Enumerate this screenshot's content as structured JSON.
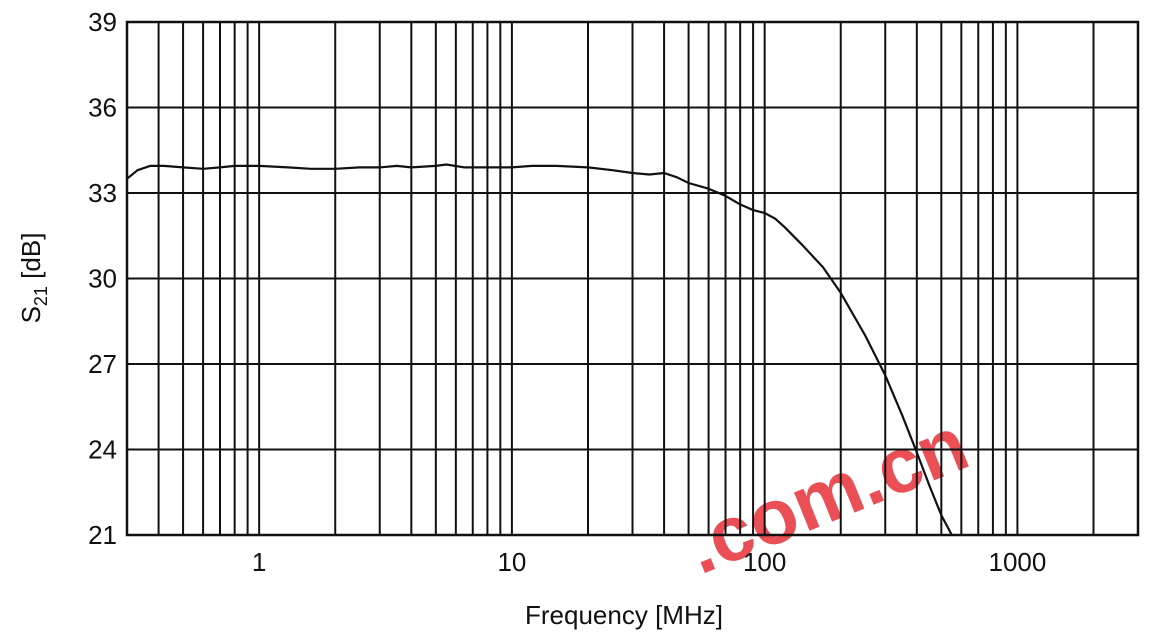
{
  "chart_data": {
    "type": "line",
    "xlabel": "Frequency [MHz]",
    "ylabel_main": "S",
    "ylabel_sub": "21",
    "ylabel_unit": " [dB]",
    "xscale": "log",
    "xlim": [
      0.3,
      3000
    ],
    "ylim": [
      21,
      39
    ],
    "x_ticks": [
      1,
      10,
      100,
      1000
    ],
    "x_tick_labels": [
      "1",
      "10",
      "100",
      "1000"
    ],
    "y_ticks": [
      21,
      24,
      27,
      30,
      33,
      36,
      39
    ],
    "y_tick_labels": [
      "21",
      "24",
      "27",
      "30",
      "33",
      "36",
      "39"
    ],
    "grid": true,
    "series": [
      {
        "x": [
          0.3,
          0.33,
          0.37,
          0.42,
          0.5,
          0.6,
          0.7,
          0.8,
          1.0,
          1.3,
          1.6,
          2.0,
          2.5,
          3.0,
          3.5,
          4.0,
          5.0,
          5.5,
          6.5,
          8.0,
          10,
          12,
          15,
          20,
          25,
          30,
          35,
          40,
          45,
          50,
          60,
          70,
          80,
          90,
          100,
          110,
          120,
          140,
          170,
          200,
          250,
          300,
          350,
          400,
          450,
          500,
          550
        ],
        "y": [
          33.5,
          33.8,
          33.95,
          33.95,
          33.9,
          33.85,
          33.9,
          33.95,
          33.95,
          33.9,
          33.85,
          33.85,
          33.9,
          33.9,
          33.95,
          33.9,
          33.95,
          34.0,
          33.9,
          33.9,
          33.9,
          33.95,
          33.95,
          33.9,
          33.8,
          33.7,
          33.65,
          33.7,
          33.55,
          33.35,
          33.15,
          32.9,
          32.6,
          32.4,
          32.3,
          32.1,
          31.8,
          31.2,
          30.4,
          29.5,
          28.0,
          26.6,
          25.2,
          23.9,
          22.7,
          21.7,
          21.0
        ]
      }
    ],
    "watermark": ".com.cn"
  }
}
